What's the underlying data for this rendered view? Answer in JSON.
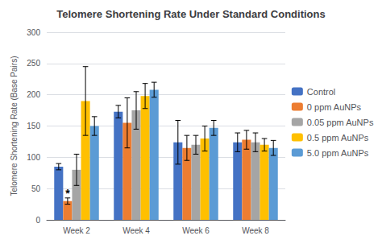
{
  "chart_data": {
    "type": "bar",
    "title": "Telomere Shortening Rate Under Standard Conditions",
    "ylabel": "Telomere Shortening Rate (Base Pairs)",
    "categories": [
      "Week 2",
      "Week 4",
      "Week 6",
      "Week 8"
    ],
    "series": [
      {
        "name": "Control",
        "color": "#4472c4",
        "values": [
          85,
          173,
          124,
          124
        ],
        "errors": [
          5,
          10,
          35,
          15
        ]
      },
      {
        "name": "0 ppm AuNPs",
        "color": "#ed7d31",
        "values": [
          30,
          155,
          115,
          128
        ],
        "errors": [
          5,
          40,
          20,
          15
        ]
      },
      {
        "name": "0.05 ppm AuNPs",
        "color": "#a5a5a5",
        "values": [
          80,
          175,
          120,
          124
        ],
        "errors": [
          25,
          30,
          15,
          15
        ]
      },
      {
        "name": "0.5 ppm AuNPs",
        "color": "#ffc000",
        "values": [
          190,
          198,
          130,
          120
        ],
        "errors": [
          55,
          20,
          20,
          10
        ]
      },
      {
        "name": "5.0 ppm AuNPs",
        "color": "#5b9bd5",
        "values": [
          150,
          208,
          147,
          115
        ],
        "errors": [
          15,
          12,
          12,
          12
        ]
      }
    ],
    "annotations": [
      {
        "text": "*",
        "category": "Week 2",
        "series": "0 ppm AuNPs",
        "y": 42
      }
    ],
    "ylim": [
      0,
      300
    ],
    "yticks": [
      0,
      50,
      100,
      150,
      200,
      250,
      300
    ],
    "grid": true,
    "legend": "right"
  }
}
